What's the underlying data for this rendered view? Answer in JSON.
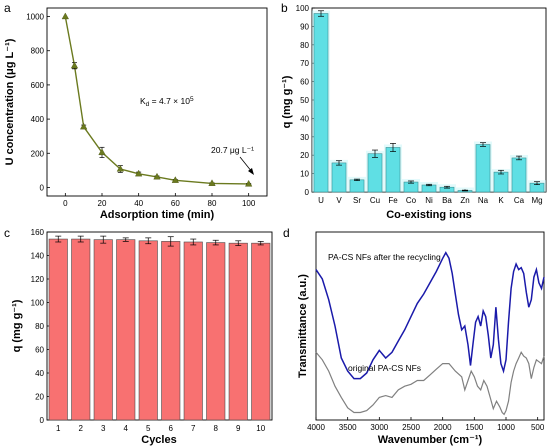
{
  "chart_data": [
    {
      "panel": "a",
      "type": "line",
      "xlabel": "Adsorption time (min)",
      "ylabel": "U concentration (μg L⁻¹)",
      "xlim": [
        -10,
        110
      ],
      "ylim": [
        -50,
        1050
      ],
      "xticks": [
        0,
        20,
        40,
        60,
        80,
        100
      ],
      "yticks": [
        0,
        200,
        400,
        600,
        800,
        1000
      ],
      "x": [
        0,
        5,
        10,
        20,
        30,
        40,
        50,
        60,
        80,
        100
      ],
      "y": [
        1000,
        712,
        355,
        205,
        108,
        80,
        62,
        42,
        24,
        20.7
      ],
      "error": [
        0,
        18,
        10,
        30,
        20,
        10,
        5,
        4,
        3,
        3
      ],
      "color": "#6b7a1f",
      "annotations": {
        "kd": "K",
        "kd_sub": "d",
        "kd_rest": " = 4.7 × 10",
        "kd_sup": "5",
        "end": "20.7 μg L⁻¹"
      }
    },
    {
      "panel": "b",
      "type": "bar",
      "xlabel": "Co-existing ions",
      "ylabel": "q (mg g⁻¹)",
      "ylim": [
        0,
        100
      ],
      "yticks": [
        0,
        10,
        20,
        30,
        40,
        50,
        60,
        70,
        80,
        90,
        100
      ],
      "categories": [
        "U",
        "V",
        "Sr",
        "Cu",
        "Fe",
        "Co",
        "Ni",
        "Ba",
        "Zn",
        "Na",
        "K",
        "Ca",
        "Mg"
      ],
      "values": [
        97,
        15.8,
        6.6,
        20.8,
        24.2,
        5.4,
        3.8,
        2.6,
        0.8,
        25.8,
        10.8,
        18.5,
        4.8
      ],
      "error": [
        1.5,
        1.2,
        0.4,
        2.0,
        2.2,
        0.6,
        0.4,
        0.5,
        0.2,
        1.0,
        1.0,
        1.0,
        0.8
      ],
      "color": "#5fdfe4"
    },
    {
      "panel": "c",
      "type": "bar",
      "xlabel": "Cycles",
      "ylabel": "q (mg g⁻¹)",
      "ylim": [
        0,
        160
      ],
      "yticks": [
        0,
        20,
        40,
        60,
        80,
        100,
        120,
        140,
        160
      ],
      "categories": [
        "1",
        "2",
        "3",
        "4",
        "5",
        "6",
        "7",
        "8",
        "9",
        "10"
      ],
      "values": [
        154,
        154,
        153.5,
        153.5,
        152.5,
        152,
        151.5,
        151,
        150.5,
        150.5
      ],
      "error": [
        2.5,
        2.5,
        3,
        1.5,
        2.5,
        4,
        2.5,
        2,
        2,
        1.5
      ],
      "color": "#f87171"
    },
    {
      "panel": "d",
      "type": "line",
      "xlabel": "Wavenumber (cm⁻¹)",
      "ylabel": "Transmittance (a.u.)",
      "xlim": [
        4000,
        400
      ],
      "xticks": [
        4000,
        3500,
        3000,
        2500,
        2000,
        1500,
        1000,
        500
      ],
      "series": [
        {
          "name": "PA-CS NFs after the recycling",
          "color": "#1a1aaa",
          "x": [
            4000,
            3900,
            3800,
            3700,
            3600,
            3500,
            3400,
            3300,
            3200,
            3100,
            3000,
            2900,
            2800,
            2700,
            2600,
            2500,
            2400,
            2300,
            2200,
            2100,
            2000,
            1950,
            1900,
            1850,
            1800,
            1750,
            1700,
            1650,
            1600,
            1560,
            1520,
            1480,
            1440,
            1400,
            1360,
            1320,
            1280,
            1240,
            1200,
            1160,
            1120,
            1080,
            1040,
            1000,
            960,
            920,
            880,
            840,
            800,
            760,
            720,
            680,
            640,
            600,
            560,
            520,
            480,
            440,
            400
          ],
          "y": [
            0.8,
            0.75,
            0.64,
            0.5,
            0.33,
            0.26,
            0.22,
            0.22,
            0.25,
            0.32,
            0.37,
            0.33,
            0.36,
            0.42,
            0.48,
            0.55,
            0.62,
            0.67,
            0.73,
            0.79,
            0.86,
            0.89,
            0.86,
            0.78,
            0.67,
            0.56,
            0.48,
            0.5,
            0.4,
            0.29,
            0.41,
            0.52,
            0.55,
            0.5,
            0.58,
            0.55,
            0.45,
            0.33,
            0.4,
            0.6,
            0.43,
            0.3,
            0.26,
            0.32,
            0.52,
            0.7,
            0.79,
            0.83,
            0.8,
            0.81,
            0.78,
            0.68,
            0.6,
            0.64,
            0.76,
            0.8,
            0.73,
            0.7,
            0.76
          ]
        },
        {
          "name": "original PA-CS NFs",
          "color": "#808080",
          "x": [
            4000,
            3900,
            3800,
            3700,
            3600,
            3500,
            3400,
            3300,
            3200,
            3100,
            3000,
            2900,
            2800,
            2700,
            2600,
            2500,
            2400,
            2300,
            2200,
            2100,
            2000,
            1900,
            1800,
            1700,
            1650,
            1600,
            1550,
            1500,
            1450,
            1400,
            1350,
            1300,
            1250,
            1200,
            1150,
            1100,
            1060,
            1030,
            1000,
            960,
            920,
            880,
            840,
            800,
            760,
            720,
            680,
            640,
            600,
            560,
            520,
            480,
            440,
            400
          ],
          "y": [
            0.36,
            0.32,
            0.26,
            0.18,
            0.12,
            0.065,
            0.04,
            0.04,
            0.05,
            0.08,
            0.12,
            0.13,
            0.12,
            0.16,
            0.18,
            0.19,
            0.21,
            0.21,
            0.24,
            0.27,
            0.3,
            0.3,
            0.26,
            0.23,
            0.16,
            0.21,
            0.26,
            0.23,
            0.18,
            0.16,
            0.21,
            0.18,
            0.12,
            0.06,
            0.1,
            0.07,
            0.04,
            0.03,
            0.05,
            0.1,
            0.2,
            0.26,
            0.3,
            0.33,
            0.36,
            0.34,
            0.33,
            0.3,
            0.22,
            0.28,
            0.32,
            0.31,
            0.3,
            0.34
          ]
        }
      ]
    }
  ]
}
